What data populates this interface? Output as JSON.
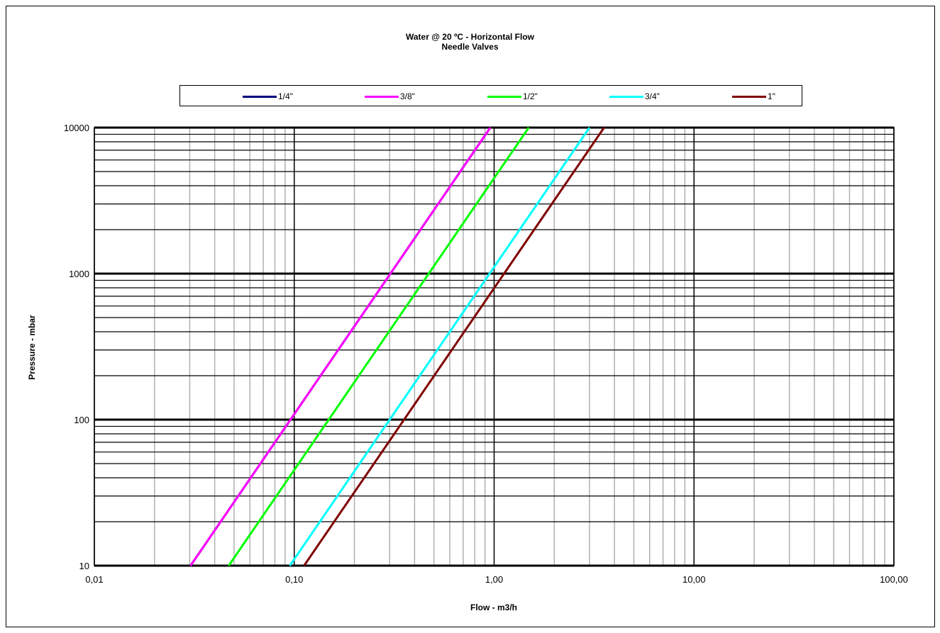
{
  "chart_data": {
    "type": "line",
    "title": "Water @ 20 ºC - Horizontal Flow",
    "subtitle": "Needle Valves",
    "xlabel": "Flow - m3/h",
    "ylabel": "Pressure - mbar",
    "xscale": "log",
    "yscale": "log",
    "xlim": [
      0.01,
      100
    ],
    "ylim": [
      10,
      10000
    ],
    "grid": true,
    "legend_position": "top",
    "x_tick_labels": [
      "0,01",
      "0,10",
      "1,00",
      "10,00",
      "100,00"
    ],
    "y_tick_labels": [
      "10",
      "100",
      "1000",
      "10000"
    ],
    "series": [
      {
        "name": "1/4\"",
        "color": "#000080",
        "x": [
          0.0303,
          0.958
        ],
        "y": [
          10,
          10000
        ]
      },
      {
        "name": "3/8\"",
        "color": "#FF00FF",
        "x": [
          0.0303,
          0.958
        ],
        "y": [
          10,
          10000
        ]
      },
      {
        "name": "1/2\"",
        "color": "#00FF00",
        "x": [
          0.047,
          1.49
        ],
        "y": [
          10,
          10000
        ]
      },
      {
        "name": "3/4\"",
        "color": "#00FFFF",
        "x": [
          0.095,
          3.0
        ],
        "y": [
          10,
          10000
        ]
      },
      {
        "name": "1\"",
        "color": "#800000",
        "x": [
          0.112,
          3.55
        ],
        "y": [
          10,
          10000
        ]
      }
    ]
  }
}
